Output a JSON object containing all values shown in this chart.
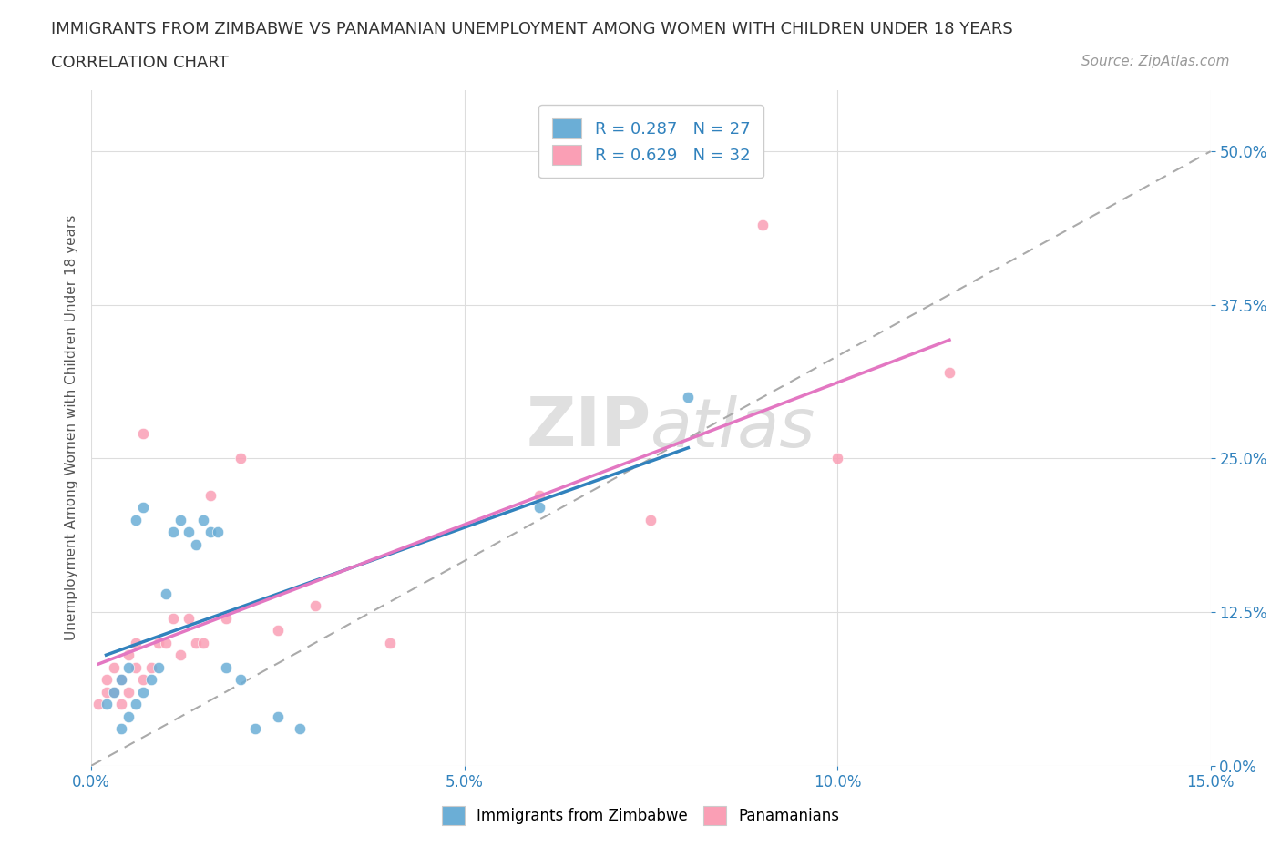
{
  "title_line1": "IMMIGRANTS FROM ZIMBABWE VS PANAMANIAN UNEMPLOYMENT AMONG WOMEN WITH CHILDREN UNDER 18 YEARS",
  "title_line2": "CORRELATION CHART",
  "source": "Source: ZipAtlas.com",
  "ylabel": "Unemployment Among Women with Children Under 18 years",
  "xlim": [
    0.0,
    0.15
  ],
  "ylim": [
    0.0,
    0.55
  ],
  "yticks": [
    0.0,
    0.125,
    0.25,
    0.375,
    0.5
  ],
  "ytick_labels": [
    "0.0%",
    "12.5%",
    "25.0%",
    "37.5%",
    "50.0%"
  ],
  "xticks": [
    0.0,
    0.05,
    0.1,
    0.15
  ],
  "xtick_labels": [
    "0.0%",
    "5.0%",
    "10.0%",
    "15.0%"
  ],
  "legend_r1": "R = 0.287",
  "legend_n1": "N = 27",
  "legend_r2": "R = 0.629",
  "legend_n2": "N = 32",
  "color_blue": "#6baed6",
  "color_pink": "#fa9fb5",
  "color_blue_line": "#3182bd",
  "color_pink_line": "#e377c2",
  "color_dashed_line": "#aaaaaa",
  "watermark_zip": "ZIP",
  "watermark_atlas": "atlas",
  "zimbabwe_x": [
    0.002,
    0.003,
    0.004,
    0.004,
    0.005,
    0.005,
    0.006,
    0.006,
    0.007,
    0.007,
    0.008,
    0.009,
    0.01,
    0.011,
    0.012,
    0.013,
    0.014,
    0.015,
    0.016,
    0.017,
    0.018,
    0.02,
    0.022,
    0.025,
    0.028,
    0.06,
    0.08
  ],
  "zimbabwe_y": [
    0.05,
    0.06,
    0.03,
    0.07,
    0.04,
    0.08,
    0.05,
    0.2,
    0.06,
    0.21,
    0.07,
    0.08,
    0.14,
    0.19,
    0.2,
    0.19,
    0.18,
    0.2,
    0.19,
    0.19,
    0.08,
    0.07,
    0.03,
    0.04,
    0.03,
    0.21,
    0.3
  ],
  "panama_x": [
    0.001,
    0.002,
    0.002,
    0.003,
    0.003,
    0.004,
    0.004,
    0.005,
    0.005,
    0.006,
    0.006,
    0.007,
    0.007,
    0.008,
    0.009,
    0.01,
    0.011,
    0.012,
    0.013,
    0.014,
    0.015,
    0.016,
    0.018,
    0.02,
    0.025,
    0.03,
    0.04,
    0.06,
    0.075,
    0.09,
    0.1,
    0.115
  ],
  "panama_y": [
    0.05,
    0.06,
    0.07,
    0.06,
    0.08,
    0.07,
    0.05,
    0.06,
    0.09,
    0.08,
    0.1,
    0.07,
    0.27,
    0.08,
    0.1,
    0.1,
    0.12,
    0.09,
    0.12,
    0.1,
    0.1,
    0.22,
    0.12,
    0.25,
    0.11,
    0.13,
    0.1,
    0.22,
    0.2,
    0.44,
    0.25,
    0.32
  ]
}
